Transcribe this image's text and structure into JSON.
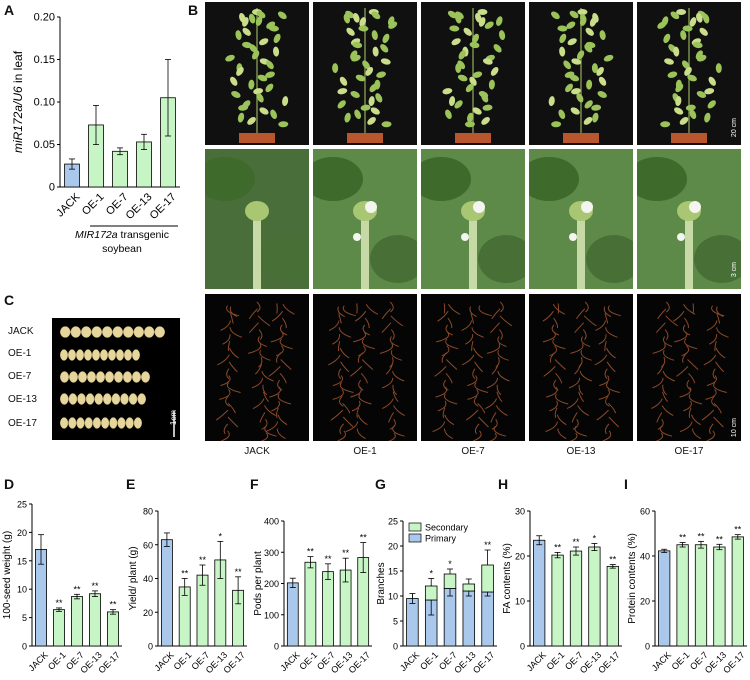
{
  "colors": {
    "control": "#a9c8ec",
    "transgenic": "#c8f5c5",
    "stroke": "#000000",
    "plant_bg": "#101010",
    "flower_bg": "#3f6f30",
    "dry_plant": "#8a4a2a"
  },
  "panels": [
    "A",
    "B",
    "C",
    "D",
    "E",
    "F",
    "G",
    "H",
    "I"
  ],
  "panel_b": {
    "columns": [
      "JACK",
      "OE-1",
      "OE-7",
      "OE-13",
      "OE-17"
    ],
    "scale_bars": [
      "20 cm",
      "3 cm",
      "10 cm"
    ]
  },
  "panel_c": {
    "rows": [
      "JACK",
      "OE-1",
      "OE-7",
      "OE-13",
      "OE-17"
    ],
    "scale_bar": "1cm",
    "seeds_per_row": 10
  },
  "chart_data": [
    {
      "panel": "A",
      "type": "bar",
      "categories": [
        "JACK",
        "OE-1",
        "OE-7",
        "OE-13",
        "OE-17"
      ],
      "values": [
        0.027,
        0.073,
        0.042,
        0.053,
        0.105
      ],
      "errors": [
        0.006,
        0.023,
        0.004,
        0.009,
        0.045
      ],
      "ylabel_italic": "miR172a/U6",
      "ylabel_rest": " in leaf",
      "ylim": [
        0,
        0.2
      ],
      "yticks": [
        "0",
        "0.05",
        "0.10",
        "0.15",
        "0.20"
      ],
      "xlabel_italic": "MIR172a",
      "xlabel_rest": " transgenic",
      "xlabel_line2": "soybean"
    },
    {
      "panel": "D",
      "type": "bar",
      "categories": [
        "JACK",
        "OE-1",
        "OE-7",
        "OE-13",
        "OE-17"
      ],
      "values": [
        17.0,
        6.4,
        8.7,
        9.2,
        6.0
      ],
      "errors": [
        2.6,
        0.3,
        0.4,
        0.5,
        0.4
      ],
      "sig": [
        "",
        "**",
        "**",
        "**",
        "**"
      ],
      "ylabel": "100-seed weight (g)",
      "ylim": [
        0,
        25
      ],
      "yticks": [
        "0",
        "5",
        "10",
        "15",
        "20",
        "25"
      ]
    },
    {
      "panel": "E",
      "type": "bar",
      "categories": [
        "JACK",
        "OE-1",
        "OE-7",
        "OE-13",
        "OE-17"
      ],
      "values": [
        63,
        35,
        42,
        51,
        33
      ],
      "errors": [
        4,
        5,
        6,
        11,
        8
      ],
      "sig": [
        "",
        "**",
        "**",
        "*",
        "**"
      ],
      "ylabel": "Yield/ plant (g)",
      "ylim": [
        0,
        80
      ],
      "yticks": [
        "0",
        "20",
        "40",
        "60",
        "80"
      ]
    },
    {
      "panel": "F",
      "type": "bar",
      "categories": [
        "JACK",
        "OE-1",
        "OE-7",
        "OE-13",
        "OE-17"
      ],
      "values": [
        202,
        268,
        238,
        243,
        283
      ],
      "errors": [
        15,
        18,
        25,
        38,
        48
      ],
      "sig": [
        "",
        "**",
        "**",
        "**",
        "**"
      ],
      "ylabel": "Pods per plant",
      "ylim": [
        0,
        400
      ],
      "yticks": [
        "0",
        "100",
        "200",
        "300",
        "400"
      ]
    },
    {
      "panel": "G",
      "type": "stacked_bar",
      "categories": [
        "JACK",
        "OE-1",
        "OE-7",
        "OE-13",
        "OE-17"
      ],
      "series": [
        {
          "name": "Primary",
          "values": [
            9.5,
            9.2,
            11.5,
            11.0,
            10.8
          ],
          "errors": [
            1.0,
            3.0,
            1.5,
            1.0,
            0.8
          ]
        },
        {
          "name": "Secondary",
          "values": [
            0.0,
            2.8,
            2.9,
            1.4,
            5.4
          ],
          "errors": [
            0,
            1.5,
            1.0,
            1.0,
            3.0
          ]
        }
      ],
      "sig": [
        "",
        "*",
        "*",
        "",
        "**"
      ],
      "ylabel": "Branches",
      "ylim": [
        0,
        25
      ],
      "yticks": [
        "0",
        "5",
        "10",
        "15",
        "20",
        "25"
      ],
      "legend": "top-left"
    },
    {
      "panel": "H",
      "type": "bar",
      "categories": [
        "JACK",
        "OE-1",
        "OE-7",
        "OE-13",
        "OE-17"
      ],
      "values": [
        23.5,
        20.2,
        21.1,
        22.0,
        17.7
      ],
      "errors": [
        1.0,
        0.6,
        0.9,
        0.8,
        0.4
      ],
      "sig": [
        "",
        "**",
        "**",
        "*",
        "**"
      ],
      "ylabel": "FA contents (%)",
      "ylim": [
        0,
        30
      ],
      "yticks": [
        "0",
        "10",
        "20",
        "30"
      ]
    },
    {
      "panel": "I",
      "type": "bar",
      "categories": [
        "JACK",
        "OE-1",
        "OE-7",
        "OE-13",
        "OE-17"
      ],
      "values": [
        42.3,
        45.0,
        45.0,
        44.0,
        48.5
      ],
      "errors": [
        0.7,
        1.0,
        1.5,
        1.2,
        1.0
      ],
      "sig": [
        "",
        "**",
        "**",
        "**",
        "**"
      ],
      "ylabel": "Protein contents (%)",
      "ylim": [
        0,
        60
      ],
      "yticks": [
        "0",
        "20",
        "40",
        "60"
      ]
    }
  ]
}
